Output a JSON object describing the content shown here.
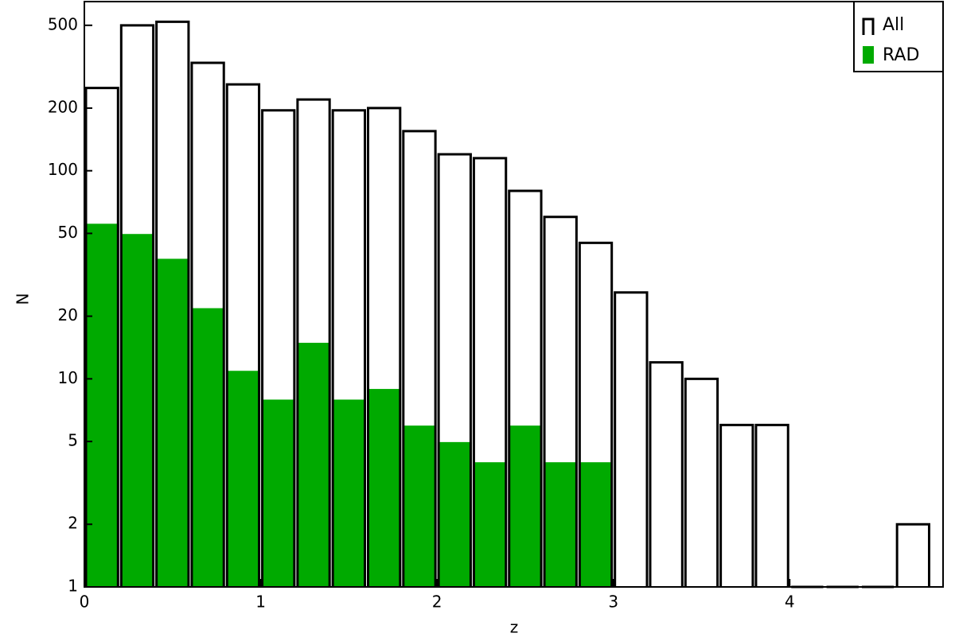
{
  "chart_data": {
    "type": "histogram",
    "x_label": "z",
    "y_label": "N",
    "bins": [
      0,
      0.2,
      0.4,
      0.6,
      0.8,
      1.0,
      1.2,
      1.4,
      1.6,
      1.8,
      2.0,
      2.2,
      2.4,
      2.6,
      2.8,
      3.0,
      3.2,
      3.4,
      3.6,
      3.8,
      4.0,
      4.2,
      4.4,
      4.6,
      4.8
    ],
    "series": [
      {
        "name": "All",
        "color": "#000000",
        "values": [
          250,
          500,
          520,
          330,
          260,
          195,
          220,
          195,
          200,
          155,
          120,
          115,
          80,
          60,
          45,
          26,
          12,
          10,
          6,
          6,
          1,
          0,
          0,
          2
        ]
      },
      {
        "name": "RAD",
        "color": "#00aa00",
        "values": [
          56,
          50,
          38,
          22,
          11,
          8,
          15,
          8,
          9,
          6,
          5,
          4,
          6,
          4,
          4,
          0,
          0,
          0,
          0,
          0,
          0,
          0,
          0,
          0
        ]
      }
    ],
    "xlim": [
      0,
      4.87
    ],
    "ylim": [
      1,
      650
    ],
    "log_y": true,
    "xticks": [
      0,
      1,
      2,
      3,
      4
    ],
    "yticks": [
      1,
      2,
      5,
      10,
      20,
      50,
      100,
      200,
      500
    ],
    "legend": "upper right"
  }
}
